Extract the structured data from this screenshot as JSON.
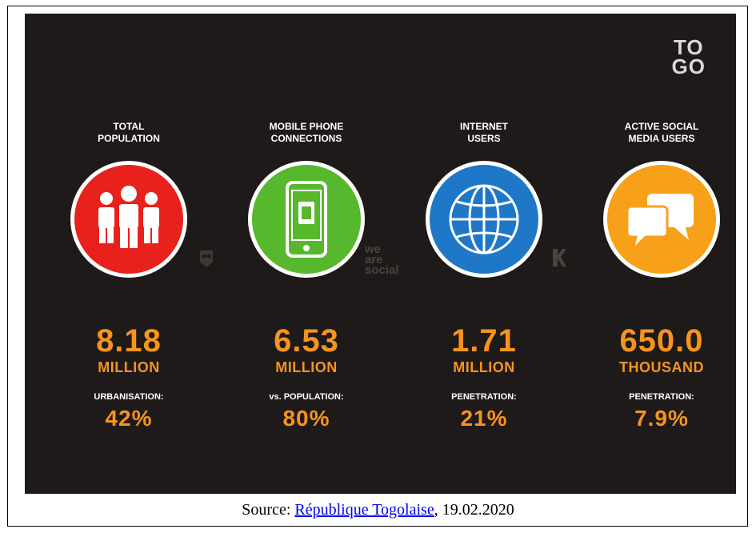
{
  "country": [
    "TO",
    "GO"
  ],
  "stats": [
    {
      "title_lines": [
        "TOTAL",
        "POPULATION"
      ],
      "value": "8.18",
      "unit": "MILLION",
      "sub_label": "URBANISATION:",
      "sub_value": "42%",
      "circle_color": "#e8211d",
      "icon": "people-icon"
    },
    {
      "title_lines": [
        "MOBILE PHONE",
        "CONNECTIONS"
      ],
      "value": "6.53",
      "unit": "MILLION",
      "sub_label": "vs. POPULATION:",
      "sub_value": "80%",
      "circle_color": "#57b82d",
      "icon": "mobile-phone-icon"
    },
    {
      "title_lines": [
        "INTERNET",
        "USERS"
      ],
      "value": "1.71",
      "unit": "MILLION",
      "sub_label": "PENETRATION:",
      "sub_value": "21%",
      "circle_color": "#1f77c8",
      "icon": "globe-icon"
    },
    {
      "title_lines": [
        "ACTIVE SOCIAL",
        "MEDIA USERS"
      ],
      "value": "650.0",
      "unit": "THOUSAND",
      "sub_label": "PENETRATION:",
      "sub_value": "7.9%",
      "circle_color": "#f7a11a",
      "icon": "speech-bubbles-icon"
    }
  ],
  "watermark": [
    "we",
    "are",
    "social"
  ],
  "accent_color": "#f7941d",
  "source": {
    "prefix": "Source: ",
    "link_text": "République Togolaise",
    "suffix": ", 19.02.2020"
  }
}
